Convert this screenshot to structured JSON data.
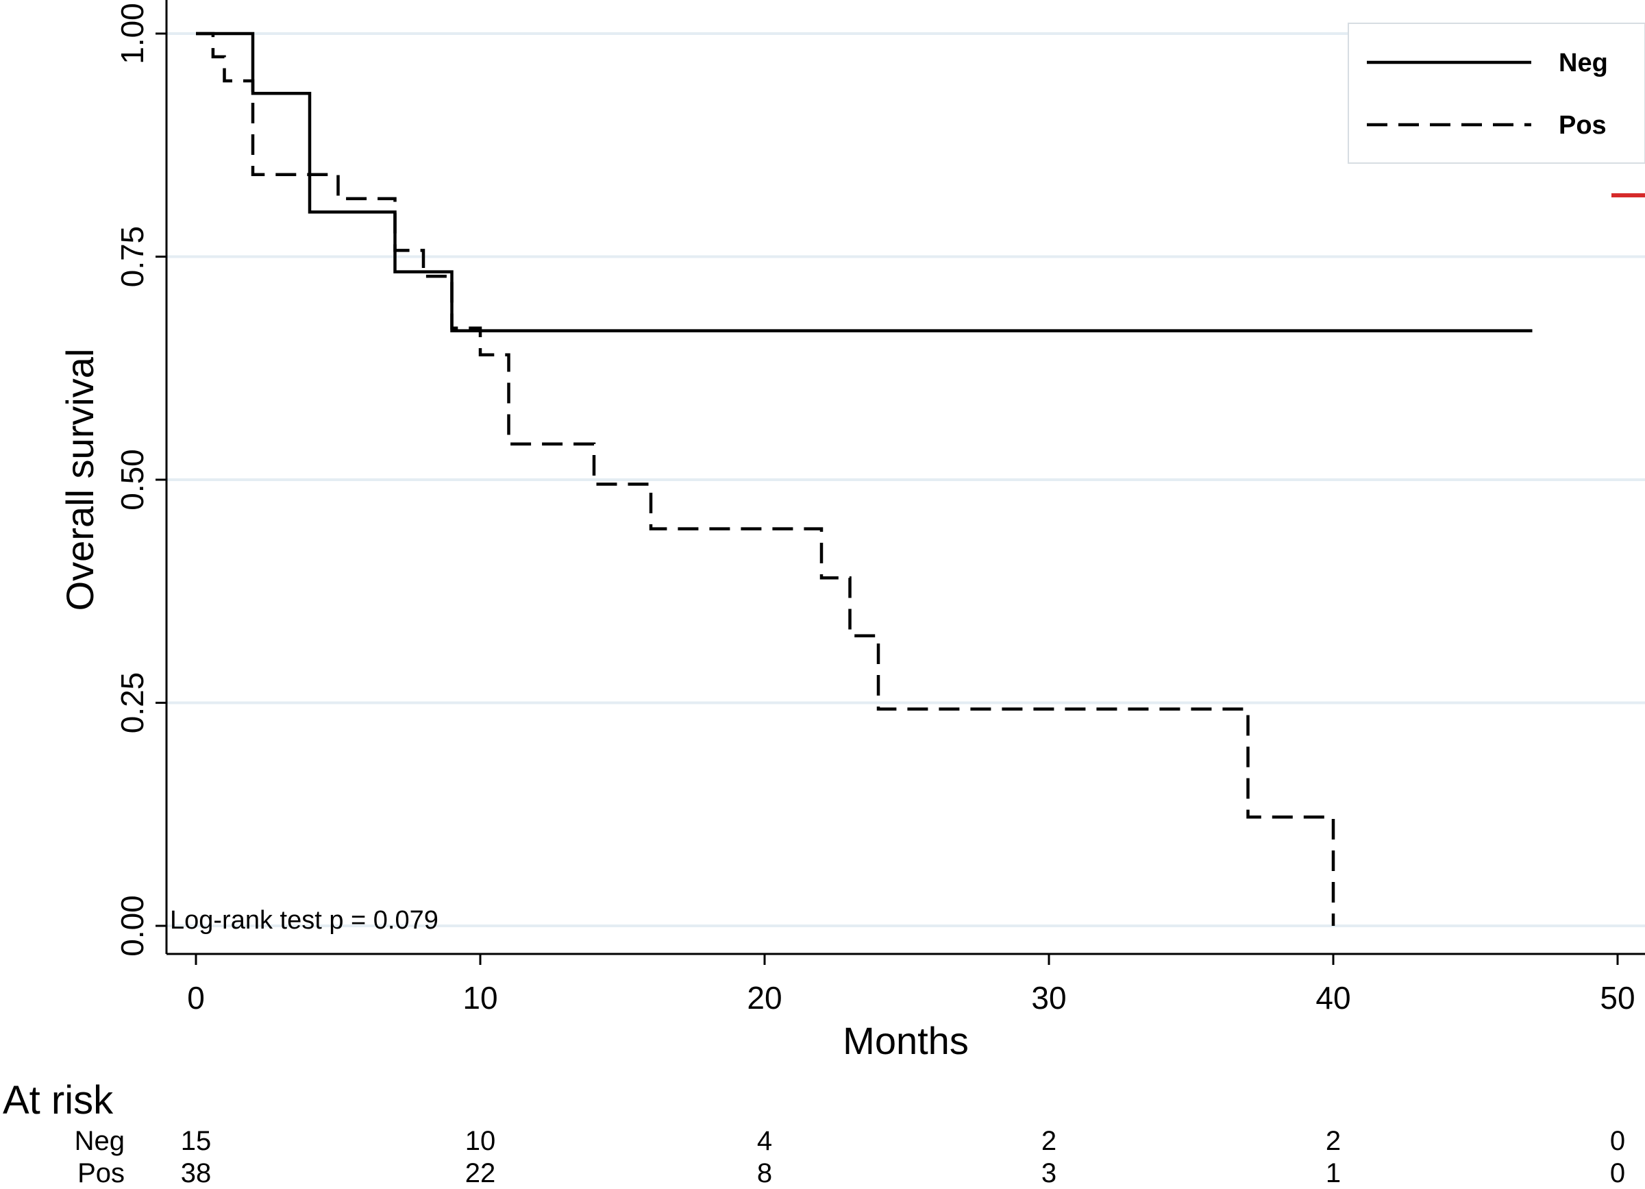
{
  "chart_data": {
    "type": "line",
    "subtype": "kaplan-meier",
    "title": "",
    "xlabel": "Months",
    "ylabel": "Overall survival",
    "xlim": [
      0,
      50
    ],
    "ylim": [
      0,
      1
    ],
    "xticks": [
      "0",
      "10",
      "20",
      "30",
      "40",
      "50"
    ],
    "yticks": [
      "0.00",
      "0.25",
      "0.50",
      "0.75",
      "1.00"
    ],
    "grid": "horizontal",
    "legend": {
      "position": "top-right"
    },
    "annotation": "Log-rank test p = 0.079",
    "series": [
      {
        "name": "Neg",
        "style": "solid",
        "points": [
          [
            0,
            1.0
          ],
          [
            2,
            1.0
          ],
          [
            2,
            0.933
          ],
          [
            4,
            0.933
          ],
          [
            4,
            0.8
          ],
          [
            7,
            0.8
          ],
          [
            7,
            0.733
          ],
          [
            9,
            0.733
          ],
          [
            9,
            0.667
          ],
          [
            47,
            0.667
          ]
        ]
      },
      {
        "name": "Pos",
        "style": "dashed",
        "points": [
          [
            0,
            1.0
          ],
          [
            0.6,
            1.0
          ],
          [
            0.6,
            0.974
          ],
          [
            1,
            0.974
          ],
          [
            1,
            0.947
          ],
          [
            2,
            0.947
          ],
          [
            2,
            0.842
          ],
          [
            5,
            0.842
          ],
          [
            5,
            0.815
          ],
          [
            7,
            0.815
          ],
          [
            7,
            0.757
          ],
          [
            8,
            0.757
          ],
          [
            8,
            0.728
          ],
          [
            9,
            0.728
          ],
          [
            9,
            0.67
          ],
          [
            10,
            0.67
          ],
          [
            10,
            0.64
          ],
          [
            11,
            0.64
          ],
          [
            11,
            0.54
          ],
          [
            14,
            0.54
          ],
          [
            14,
            0.495
          ],
          [
            16,
            0.495
          ],
          [
            16,
            0.445
          ],
          [
            22,
            0.445
          ],
          [
            22,
            0.39
          ],
          [
            23,
            0.39
          ],
          [
            23,
            0.325
          ],
          [
            24,
            0.325
          ],
          [
            24,
            0.243
          ],
          [
            37,
            0.243
          ],
          [
            37,
            0.122
          ],
          [
            40,
            0.122
          ],
          [
            40,
            0.0
          ]
        ]
      }
    ],
    "at_risk": {
      "title": "At risk",
      "times": [
        0,
        10,
        20,
        30,
        40,
        50
      ],
      "rows": [
        {
          "label": "Neg",
          "values": [
            "15",
            "10",
            "4",
            "2",
            "2",
            "0"
          ]
        },
        {
          "label": "Pos",
          "values": [
            "38",
            "22",
            "8",
            "3",
            "1",
            "0"
          ]
        }
      ]
    }
  },
  "colors": {
    "line": "#000000",
    "grid": "#e4edf3",
    "background": "#ffffff",
    "marker": "#d62a2a"
  }
}
